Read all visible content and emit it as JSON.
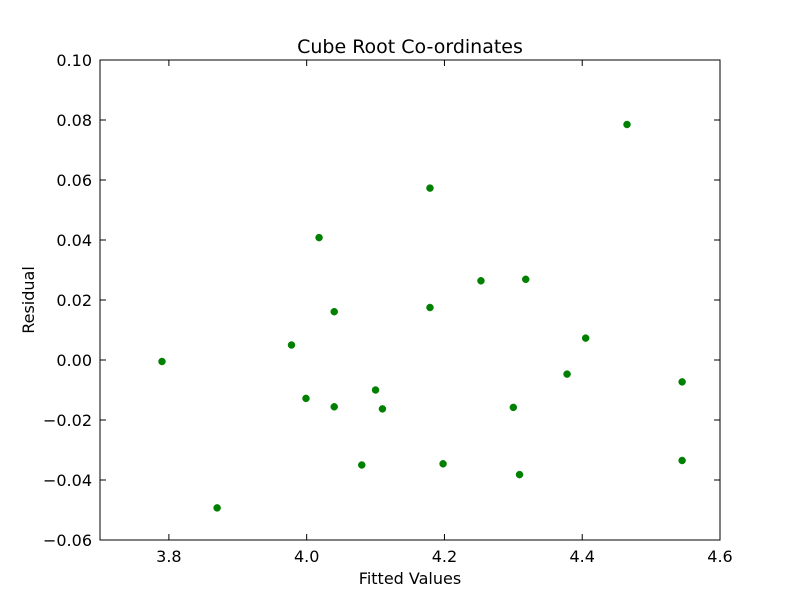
{
  "chart_data": {
    "type": "scatter",
    "title": "Cube Root Co-ordinates",
    "xlabel": "Fitted Values",
    "ylabel": "Residual",
    "xlim": [
      3.7,
      4.6
    ],
    "ylim": [
      -0.06,
      0.1
    ],
    "xticks": [
      3.8,
      4.0,
      4.2,
      4.4,
      4.6
    ],
    "xtick_labels": [
      "3.8",
      "4.0",
      "4.2",
      "4.4",
      "4.6"
    ],
    "yticks": [
      -0.06,
      -0.04,
      -0.02,
      0.0,
      0.02,
      0.04,
      0.06,
      0.08,
      0.1
    ],
    "ytick_labels": [
      "−0.06",
      "−0.04",
      "−0.02",
      "0.00",
      "0.02",
      "0.04",
      "0.06",
      "0.08",
      "0.10"
    ],
    "grid": false,
    "marker_color": "#008000",
    "series": [
      {
        "points": [
          {
            "x": 3.79,
            "y": -0.0005
          },
          {
            "x": 3.87,
            "y": -0.0493
          },
          {
            "x": 3.978,
            "y": 0.005
          },
          {
            "x": 3.999,
            "y": -0.0128
          },
          {
            "x": 4.018,
            "y": 0.0408
          },
          {
            "x": 4.04,
            "y": 0.0161
          },
          {
            "x": 4.04,
            "y": -0.0156
          },
          {
            "x": 4.08,
            "y": -0.035
          },
          {
            "x": 4.1,
            "y": -0.01
          },
          {
            "x": 4.11,
            "y": -0.0163
          },
          {
            "x": 4.179,
            "y": 0.0573
          },
          {
            "x": 4.179,
            "y": 0.0175
          },
          {
            "x": 4.198,
            "y": -0.0346
          },
          {
            "x": 4.253,
            "y": 0.0264
          },
          {
            "x": 4.3,
            "y": -0.0158
          },
          {
            "x": 4.309,
            "y": -0.0382
          },
          {
            "x": 4.318,
            "y": 0.0269
          },
          {
            "x": 4.378,
            "y": -0.0047
          },
          {
            "x": 4.405,
            "y": 0.0073
          },
          {
            "x": 4.465,
            "y": 0.0785
          },
          {
            "x": 4.545,
            "y": -0.0073
          },
          {
            "x": 4.545,
            "y": -0.0335
          }
        ]
      }
    ]
  }
}
